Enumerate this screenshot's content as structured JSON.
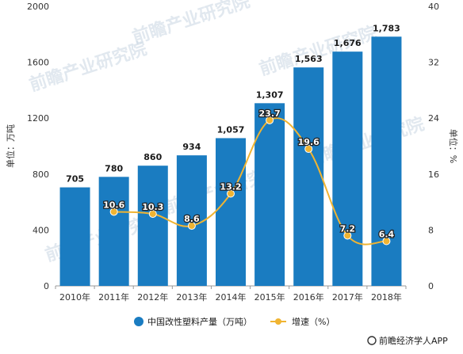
{
  "chart_data": {
    "type": "bar",
    "categories": [
      "2010年",
      "2011年",
      "2012年",
      "2013年",
      "2014年",
      "2015年",
      "2016年",
      "2017年",
      "2018年"
    ],
    "series": [
      {
        "name": "中国改性塑料产量（万吨）",
        "type": "bar",
        "axis": "left",
        "values": [
          705,
          780,
          860,
          934,
          1057,
          1307,
          1563,
          1676,
          1783
        ],
        "labels": [
          "705",
          "780",
          "860",
          "934",
          "1,057",
          "1,307",
          "1,563",
          "1,676",
          "1,783"
        ]
      },
      {
        "name": "增速（%）",
        "type": "line",
        "axis": "right",
        "values": [
          null,
          10.6,
          10.3,
          8.6,
          13.2,
          23.7,
          19.6,
          7.2,
          6.4
        ],
        "labels": [
          "",
          "10.6",
          "10.3",
          "8.6",
          "13.2",
          "23.7",
          "19.6",
          "7.2",
          "6.4"
        ]
      }
    ],
    "ylabel_left": "单位：万吨",
    "ylabel_right": "单位：%",
    "ylim_left": [
      0,
      2000
    ],
    "yticks_left": [
      0,
      400,
      800,
      1200,
      1600,
      2000
    ],
    "ylim_right": [
      0,
      40
    ],
    "yticks_right": [
      0,
      8,
      16,
      24,
      32,
      40
    ],
    "bar_color": "#1a7cc1",
    "line_color": "#f0b432",
    "legend_position": "bottom-center",
    "grid": false
  },
  "watermark": "前瞻产业研究院",
  "source_text": "前瞻经济学人APP"
}
